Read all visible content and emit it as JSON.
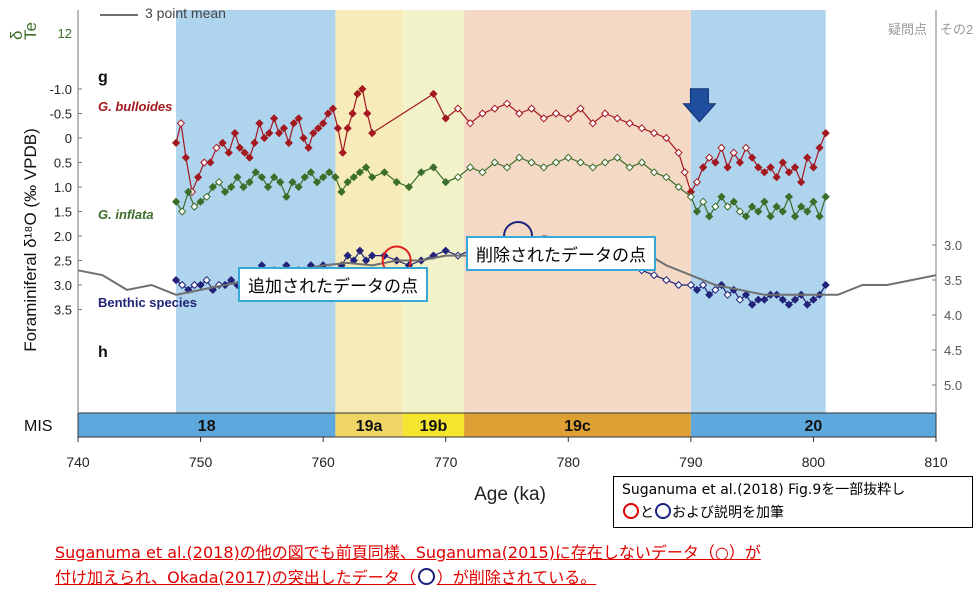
{
  "chart_data": {
    "type": "line",
    "x_axis": {
      "label": "Age (ka)",
      "min": 740,
      "max": 810,
      "ticks": [
        740,
        750,
        760,
        770,
        780,
        790,
        800,
        810
      ]
    },
    "y_left": {
      "label": "Foraminiferal δ¹⁸O (‰ VPDB)",
      "ticks": [
        "-1.0",
        "-0.5",
        "0",
        "0.5",
        "1.0",
        "1.5",
        "2.0",
        "2.5",
        "3.0",
        "3.5"
      ],
      "extra_tick": "12"
    },
    "y_right": {
      "ticks": [
        "3.0",
        "3.5",
        "4.0",
        "4.5",
        "5.0"
      ]
    },
    "top_left_cut_labels": [
      "δ",
      "Te"
    ],
    "legend_cut": "3 point mean",
    "top_right_cut": "疑問点　その2",
    "panel_labels": {
      "g": "g",
      "h": "h"
    },
    "series": [
      {
        "name": "G. bulloides",
        "color": "#a3191f",
        "x": [
          748,
          748.4,
          748.8,
          749.3,
          749.8,
          750.3,
          750.8,
          751.3,
          751.8,
          752.3,
          752.8,
          753.2,
          753.6,
          754.0,
          754.4,
          754.8,
          755.2,
          755.6,
          756.0,
          756.4,
          756.8,
          757.2,
          757.6,
          758.0,
          758.4,
          758.8,
          759.2,
          759.6,
          760.0,
          760.4,
          760.8,
          761.2,
          761.6,
          762.0,
          762.4,
          762.8,
          763.2,
          763.6,
          764.0,
          769.0,
          770.0,
          771.0,
          772.0,
          773.0,
          774.0,
          775.0,
          776.0,
          777.0,
          778.0,
          779.0,
          780.0,
          781.0,
          782.0,
          783.0,
          784.0,
          785.0,
          786.0,
          787.0,
          788.0,
          789.0,
          789.5,
          790.0,
          790.5,
          791.0,
          791.5,
          792.0,
          792.5,
          793.0,
          793.5,
          794.0,
          794.5,
          795.0,
          795.5,
          796.0,
          796.5,
          797.0,
          797.5,
          798.0,
          798.5,
          799.0,
          799.5,
          800.0,
          800.5,
          801.0
        ],
        "values": [
          0.1,
          -0.3,
          0.4,
          1.1,
          0.8,
          0.5,
          0.5,
          0.2,
          0.1,
          0.3,
          -0.1,
          0.2,
          0.3,
          0.4,
          0.1,
          -0.3,
          0.0,
          -0.1,
          -0.4,
          -0.1,
          -0.2,
          0.1,
          -0.3,
          -0.4,
          0.0,
          0.2,
          -0.1,
          -0.2,
          -0.3,
          -0.5,
          -0.6,
          -0.2,
          0.3,
          -0.2,
          -0.5,
          -0.9,
          -1.0,
          -0.5,
          -0.1,
          -0.9,
          -0.4,
          -0.6,
          -0.3,
          -0.5,
          -0.6,
          -0.7,
          -0.5,
          -0.6,
          -0.4,
          -0.5,
          -0.4,
          -0.6,
          -0.3,
          -0.5,
          -0.4,
          -0.3,
          -0.2,
          -0.1,
          0.0,
          0.3,
          0.7,
          1.1,
          0.9,
          0.6,
          0.4,
          0.5,
          0.2,
          0.6,
          0.3,
          0.5,
          0.2,
          0.4,
          0.6,
          0.7,
          0.6,
          0.8,
          0.5,
          0.7,
          0.6,
          0.9,
          0.4,
          0.6,
          0.2,
          -0.1
        ]
      },
      {
        "name": "G. inflata",
        "color": "#3c6e2a",
        "x": [
          748,
          748.5,
          749.0,
          749.5,
          750.0,
          750.5,
          751.0,
          751.5,
          752.0,
          752.5,
          753.0,
          753.5,
          754.0,
          754.5,
          755.0,
          755.5,
          756.0,
          756.5,
          757.0,
          757.5,
          758.0,
          758.5,
          759.0,
          759.5,
          760.0,
          760.5,
          761.0,
          761.5,
          762.0,
          762.5,
          763.0,
          763.5,
          764.0,
          765.0,
          766.0,
          767.0,
          768.0,
          769.0,
          770.0,
          771.0,
          772.0,
          773.0,
          774.0,
          775.0,
          776.0,
          777.0,
          778.0,
          779.0,
          780.0,
          781.0,
          782.0,
          783.0,
          784.0,
          785.0,
          786.0,
          787.0,
          788.0,
          789.0,
          790.0,
          790.5,
          791.0,
          791.5,
          792.0,
          792.5,
          793.0,
          793.5,
          794.0,
          794.5,
          795.0,
          795.5,
          796.0,
          796.5,
          797.0,
          797.5,
          798.0,
          798.5,
          799.0,
          799.5,
          800.0,
          800.5,
          801.0
        ],
        "values": [
          1.3,
          1.5,
          1.1,
          1.4,
          1.3,
          1.2,
          1.0,
          0.9,
          1.1,
          1.0,
          0.8,
          1.0,
          0.9,
          0.7,
          0.8,
          1.0,
          0.8,
          0.9,
          1.2,
          0.9,
          1.0,
          0.8,
          0.7,
          0.9,
          0.8,
          0.7,
          0.8,
          1.1,
          0.9,
          0.8,
          0.7,
          0.6,
          0.8,
          0.7,
          0.9,
          1.0,
          0.7,
          0.6,
          0.9,
          0.8,
          0.6,
          0.7,
          0.5,
          0.6,
          0.4,
          0.5,
          0.6,
          0.5,
          0.4,
          0.5,
          0.6,
          0.5,
          0.4,
          0.6,
          0.5,
          0.7,
          0.8,
          1.0,
          1.2,
          1.5,
          1.3,
          1.6,
          1.4,
          1.2,
          1.4,
          1.3,
          1.5,
          1.6,
          1.4,
          1.5,
          1.3,
          1.6,
          1.4,
          1.5,
          1.2,
          1.6,
          1.4,
          1.5,
          1.3,
          1.6,
          1.2
        ]
      },
      {
        "name": "Benthic species",
        "color": "#23237a",
        "x": [
          748,
          748.5,
          749.0,
          749.5,
          750.0,
          750.5,
          751.0,
          751.5,
          752.0,
          752.5,
          753.0,
          753.5,
          754.0,
          754.5,
          755.0,
          755.5,
          756.0,
          756.5,
          757.0,
          757.5,
          758.0,
          758.5,
          759.0,
          759.5,
          760.0,
          760.5,
          761.0,
          761.5,
          762.0,
          762.5,
          763.0,
          763.5,
          764.0,
          765.0,
          766.0,
          767.0,
          768.0,
          769.0,
          770.0,
          771.0,
          772.0,
          773.0,
          774.0,
          775.0,
          776.0,
          777.0,
          778.0,
          779.0,
          780.0,
          781.0,
          782.0,
          783.0,
          784.0,
          785.0,
          786.0,
          787.0,
          788.0,
          789.0,
          790.0,
          790.5,
          791.0,
          791.5,
          792.0,
          792.5,
          793.0,
          793.5,
          794.0,
          794.5,
          795.0,
          795.5,
          796.0,
          796.5,
          797.0,
          797.5,
          798.0,
          798.5,
          799.0,
          799.5,
          800.0,
          800.5,
          801.0
        ],
        "values": [
          2.9,
          3.0,
          3.1,
          3.0,
          3.0,
          2.9,
          3.1,
          3.0,
          3.0,
          2.9,
          3.0,
          2.8,
          3.1,
          2.9,
          2.6,
          2.8,
          2.7,
          2.9,
          2.6,
          2.8,
          2.7,
          2.8,
          2.6,
          2.7,
          2.6,
          2.7,
          2.8,
          2.6,
          2.4,
          2.5,
          2.3,
          2.5,
          2.4,
          2.4,
          2.5,
          2.6,
          2.5,
          2.4,
          2.3,
          2.4,
          2.3,
          2.2,
          2.3,
          2.2,
          2.1,
          2.2,
          2.2,
          2.2,
          2.3,
          2.2,
          2.3,
          2.4,
          2.5,
          2.6,
          2.7,
          2.8,
          2.9,
          3.0,
          3.0,
          3.1,
          3.0,
          3.2,
          3.1,
          3.0,
          3.2,
          3.1,
          3.3,
          3.2,
          3.4,
          3.3,
          3.3,
          3.2,
          3.2,
          3.3,
          3.4,
          3.3,
          3.2,
          3.4,
          3.3,
          3.2,
          3.0
        ]
      },
      {
        "name": "3 point mean",
        "color": "#707070",
        "x": [
          740,
          742,
          744,
          746,
          748,
          750,
          752,
          754,
          756,
          758,
          760,
          762,
          764,
          766,
          768,
          770,
          772,
          774,
          776,
          778,
          780,
          782,
          784,
          786,
          788,
          790,
          792,
          794,
          796,
          798,
          800,
          802,
          804,
          806,
          808,
          810
        ],
        "values": [
          2.7,
          2.8,
          3.1,
          3.0,
          3.2,
          3.1,
          3.0,
          2.9,
          2.8,
          2.7,
          2.6,
          2.55,
          2.6,
          2.5,
          2.5,
          2.4,
          2.4,
          2.3,
          2.2,
          2.0,
          2.1,
          2.1,
          2.2,
          2.3,
          2.6,
          2.8,
          3.0,
          3.1,
          3.2,
          3.2,
          3.2,
          3.2,
          3.0,
          3.0,
          2.9,
          2.8
        ]
      }
    ],
    "mis_bands": [
      {
        "label": "18",
        "from": 740,
        "to": 761,
        "color": "#5da8dd"
      },
      {
        "label": "19a",
        "from": 761,
        "to": 766.5,
        "color": "#efd566"
      },
      {
        "label": "19b",
        "from": 766.5,
        "to": 771.5,
        "color": "#f5e52f"
      },
      {
        "label": "19c",
        "from": 771.5,
        "to": 790,
        "color": "#dea035"
      },
      {
        "label": "20",
        "from": 790,
        "to": 810,
        "color": "#5da8dd"
      }
    ],
    "mis_label": "MIS",
    "shaded_intervals": [
      {
        "from": 748,
        "to": 761,
        "color": "#aed4ee"
      },
      {
        "from": 761,
        "to": 766.5,
        "color": "#f7ecb9"
      },
      {
        "from": 766.5,
        "to": 771.5,
        "color": "#f3f3c9"
      },
      {
        "from": 771.5,
        "to": 790,
        "color": "#f5d9c7"
      },
      {
        "from": 790,
        "to": 801,
        "color": "#aed4ee"
      }
    ],
    "markers": [
      {
        "type": "added-point-circle",
        "color": "#e02020",
        "x": 766.0,
        "y": 2.5
      },
      {
        "type": "removed-point-circle",
        "color": "#1a237e",
        "x": 775.9,
        "y": 2.0
      },
      {
        "type": "down-arrow",
        "color": "#1f4e9e",
        "x": 790.7,
        "y": -0.7
      }
    ]
  },
  "annotations": {
    "added": "追加されたデータの点",
    "removed": "削除されたデータの点",
    "credit_line1": "Suganuma et al.(2018) Fig.9を一部抜粋し",
    "credit_line2_a": "と",
    "credit_line2_b": "および説明を加筆",
    "footnote_line1": "Suganuma et al.(2018)の他の図でも前頁同様、Suganuma(2015)に存在しないデータ（○）が",
    "footnote_line2_a": "付け加えられ、Okada(2017)の突出したデータ（",
    "footnote_line2_b": "）が削除されている。"
  }
}
